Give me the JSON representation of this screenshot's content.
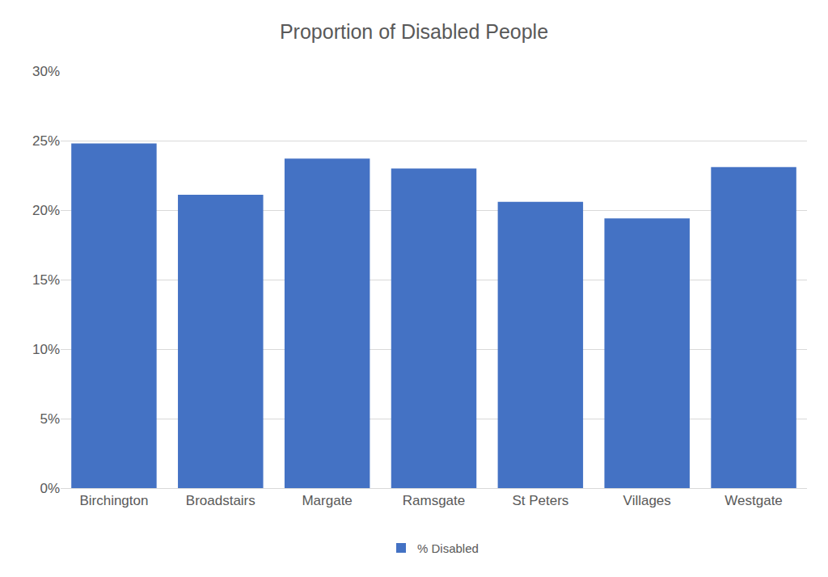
{
  "chart_data": {
    "type": "bar",
    "title": "Proportion of Disabled People",
    "categories": [
      "Birchington",
      "Broadstairs",
      "Margate",
      "Ramsgate",
      "St Peters",
      "Villages",
      "Westgate"
    ],
    "series": [
      {
        "name": "% Disabled",
        "color": "#4472c4",
        "values": [
          24.8,
          21.1,
          23.7,
          23.0,
          20.6,
          19.4,
          23.1
        ]
      }
    ],
    "ylim": [
      0,
      30
    ],
    "yticks": [
      {
        "value": 0,
        "label": "0%"
      },
      {
        "value": 5,
        "label": "5%"
      },
      {
        "value": 10,
        "label": "10%"
      },
      {
        "value": 15,
        "label": "15%"
      },
      {
        "value": 20,
        "label": "20%"
      },
      {
        "value": 25,
        "label": "25%"
      },
      {
        "value": 30,
        "label": "30%"
      }
    ],
    "grid": true,
    "legend": "bottom"
  }
}
